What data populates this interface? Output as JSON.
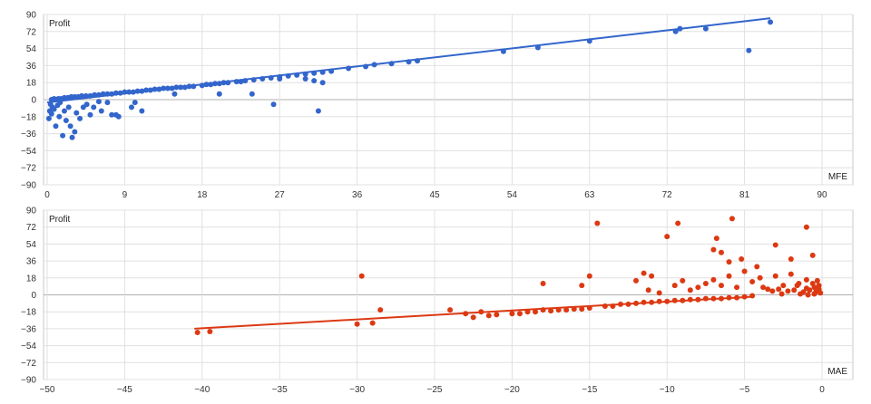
{
  "chart_data": [
    {
      "type": "scatter",
      "title": "",
      "ylabel": "Profit",
      "xlabel": "MFE",
      "xlim": [
        0,
        90
      ],
      "ylim": [
        -90,
        90
      ],
      "xticks": [
        0,
        9,
        18,
        27,
        36,
        45,
        54,
        63,
        72,
        81,
        90
      ],
      "yticks": [
        90,
        72,
        54,
        36,
        18,
        0,
        -18,
        -36,
        -54,
        -72,
        -90
      ],
      "grid": true,
      "color": "#3366cc",
      "series": [
        {
          "points": [
            [
              0.2,
              -20
            ],
            [
              0.3,
              -12
            ],
            [
              0.4,
              -5
            ],
            [
              0.5,
              -15
            ],
            [
              0.6,
              -8
            ],
            [
              0.8,
              -10
            ],
            [
              1.0,
              -28
            ],
            [
              1.2,
              -6
            ],
            [
              1.4,
              -18
            ],
            [
              1.5,
              -3
            ],
            [
              1.8,
              -38
            ],
            [
              2.0,
              -12
            ],
            [
              2.2,
              -22
            ],
            [
              2.5,
              -8
            ],
            [
              2.7,
              -28
            ],
            [
              2.9,
              -40
            ],
            [
              3.2,
              -34
            ],
            [
              3.4,
              -14
            ],
            [
              3.8,
              -20
            ],
            [
              4.2,
              -8
            ],
            [
              4.6,
              -5
            ],
            [
              5.0,
              -16
            ],
            [
              5.4,
              -8
            ],
            [
              6.0,
              -2
            ],
            [
              6.3,
              -12
            ],
            [
              7.0,
              -3
            ],
            [
              7.5,
              -16
            ],
            [
              8.0,
              -16
            ],
            [
              8.3,
              -18
            ],
            [
              9.8,
              -8
            ],
            [
              10.2,
              -3
            ],
            [
              11.0,
              -12
            ],
            [
              0.5,
              0
            ],
            [
              0.8,
              1
            ],
            [
              1.0,
              0
            ],
            [
              1.3,
              1
            ],
            [
              1.6,
              1
            ],
            [
              2.0,
              2
            ],
            [
              2.4,
              2
            ],
            [
              2.8,
              3
            ],
            [
              3.2,
              3
            ],
            [
              3.6,
              3
            ],
            [
              4.0,
              4
            ],
            [
              4.5,
              4
            ],
            [
              5.0,
              4
            ],
            [
              5.5,
              5
            ],
            [
              6.0,
              5
            ],
            [
              6.5,
              6
            ],
            [
              7.0,
              6
            ],
            [
              7.5,
              6
            ],
            [
              8.0,
              7
            ],
            [
              8.5,
              7
            ],
            [
              9.0,
              8
            ],
            [
              9.5,
              8
            ],
            [
              10.0,
              8
            ],
            [
              10.5,
              9
            ],
            [
              11.0,
              9
            ],
            [
              11.5,
              10
            ],
            [
              12.0,
              10
            ],
            [
              12.5,
              11
            ],
            [
              13.0,
              11
            ],
            [
              13.5,
              12
            ],
            [
              14.0,
              12
            ],
            [
              14.5,
              12
            ],
            [
              15.0,
              13
            ],
            [
              15.5,
              13
            ],
            [
              16.0,
              13
            ],
            [
              16.5,
              14
            ],
            [
              17.0,
              14
            ],
            [
              18.0,
              15
            ],
            [
              18.5,
              16
            ],
            [
              19.0,
              16
            ],
            [
              19.5,
              17
            ],
            [
              20.0,
              17
            ],
            [
              20.5,
              18
            ],
            [
              21.0,
              18
            ],
            [
              22.0,
              19
            ],
            [
              22.5,
              19
            ],
            [
              23.0,
              20
            ],
            [
              24.0,
              21
            ],
            [
              25.0,
              22
            ],
            [
              26.0,
              23
            ],
            [
              27.0,
              24
            ],
            [
              28.0,
              25
            ],
            [
              29.0,
              26
            ],
            [
              30.0,
              27
            ],
            [
              31.0,
              28
            ],
            [
              32.0,
              29
            ],
            [
              33.0,
              30
            ],
            [
              35.0,
              33
            ],
            [
              37.0,
              35
            ],
            [
              38.0,
              37
            ],
            [
              40.0,
              38
            ],
            [
              42.0,
              40
            ],
            [
              43.0,
              41
            ],
            [
              14.8,
              6
            ],
            [
              20.0,
              6
            ],
            [
              23.8,
              6
            ],
            [
              26.3,
              -5
            ],
            [
              31.5,
              -12
            ],
            [
              27.0,
              22
            ],
            [
              30.0,
              22
            ],
            [
              31.0,
              20
            ],
            [
              32.0,
              18
            ],
            [
              53.0,
              51
            ],
            [
              57.0,
              55
            ],
            [
              63.0,
              62
            ],
            [
              73.0,
              72
            ],
            [
              73.5,
              75
            ],
            [
              76.5,
              75
            ],
            [
              81.5,
              52
            ],
            [
              84.0,
              82
            ]
          ]
        }
      ],
      "trendline": {
        "x": [
          0,
          84
        ],
        "y": [
          -3,
          86
        ]
      }
    },
    {
      "type": "scatter",
      "title": "",
      "ylabel": "Profit",
      "xlabel": "MAE",
      "xlim": [
        -50,
        0
      ],
      "ylim": [
        -90,
        90
      ],
      "xticks": [
        -50,
        -45,
        -40,
        -35,
        -30,
        -25,
        -20,
        -15,
        -10,
        -5,
        0
      ],
      "yticks": [
        90,
        72,
        54,
        36,
        18,
        0,
        -18,
        -36,
        -54,
        -72,
        -90
      ],
      "grid": true,
      "color": "#dc3912",
      "series": [
        {
          "points": [
            [
              -40.3,
              -40
            ],
            [
              -39.5,
              -39
            ],
            [
              -30.0,
              -31
            ],
            [
              -29.7,
              20
            ],
            [
              -29.0,
              -30
            ],
            [
              -28.5,
              -16
            ],
            [
              -24.0,
              -16
            ],
            [
              -23.0,
              -20
            ],
            [
              -22.5,
              -24
            ],
            [
              -22.0,
              -18
            ],
            [
              -21.5,
              -22
            ],
            [
              -21.0,
              -21
            ],
            [
              -20.0,
              -20
            ],
            [
              -19.5,
              -20
            ],
            [
              -19.0,
              -18
            ],
            [
              -18.5,
              -18
            ],
            [
              -18.0,
              12
            ],
            [
              -18.0,
              -16
            ],
            [
              -17.5,
              -17
            ],
            [
              -17.0,
              -16
            ],
            [
              -16.5,
              -16
            ],
            [
              -16.0,
              -15
            ],
            [
              -15.5,
              -15
            ],
            [
              -15.0,
              -14
            ],
            [
              -15.5,
              10
            ],
            [
              -15.0,
              20
            ],
            [
              -14.5,
              76
            ],
            [
              -14.0,
              -12
            ],
            [
              -13.5,
              -12
            ],
            [
              -13.0,
              -10
            ],
            [
              -12.5,
              -10
            ],
            [
              -12.0,
              15
            ],
            [
              -12.0,
              -9
            ],
            [
              -11.5,
              23
            ],
            [
              -11.0,
              20
            ],
            [
              -11.5,
              -8
            ],
            [
              -11.0,
              -8
            ],
            [
              -10.5,
              -7
            ],
            [
              -10.0,
              -7
            ],
            [
              -10.0,
              62
            ],
            [
              -9.5,
              -6
            ],
            [
              -9.0,
              -6
            ],
            [
              -8.5,
              -5
            ],
            [
              -8.0,
              -5
            ],
            [
              -7.5,
              -4
            ],
            [
              -7.0,
              -4
            ],
            [
              -6.5,
              -4
            ],
            [
              -6.0,
              -3
            ],
            [
              -5.5,
              -3
            ],
            [
              -5.0,
              -2
            ],
            [
              -4.5,
              -1
            ],
            [
              -9.5,
              10
            ],
            [
              -9.0,
              15
            ],
            [
              -8.5,
              5
            ],
            [
              -8.0,
              8
            ],
            [
              -7.5,
              12
            ],
            [
              -7.0,
              16
            ],
            [
              -6.5,
              10
            ],
            [
              -6.0,
              20
            ],
            [
              -5.5,
              8
            ],
            [
              -5.0,
              25
            ],
            [
              -4.5,
              14
            ],
            [
              -4.0,
              18
            ],
            [
              -3.5,
              6
            ],
            [
              -3.0,
              20
            ],
            [
              -2.5,
              10
            ],
            [
              -2.0,
              22
            ],
            [
              -1.5,
              12
            ],
            [
              -1.0,
              16
            ],
            [
              -0.5,
              8
            ],
            [
              -3.8,
              8
            ],
            [
              -3.2,
              4
            ],
            [
              -2.8,
              6
            ],
            [
              -2.2,
              4
            ],
            [
              -1.8,
              5
            ],
            [
              -1.2,
              3
            ],
            [
              -0.8,
              5
            ],
            [
              -0.4,
              3
            ],
            [
              -0.2,
              6
            ],
            [
              -0.1,
              2
            ],
            [
              -1.6,
              10
            ],
            [
              -1.0,
              7
            ],
            [
              -0.6,
              12
            ],
            [
              -0.3,
              15
            ],
            [
              -0.2,
              10
            ],
            [
              -2.6,
              1
            ],
            [
              -1.4,
              1
            ],
            [
              -0.9,
              0
            ],
            [
              -0.5,
              1
            ],
            [
              -0.3,
              4
            ],
            [
              -9.3,
              76
            ],
            [
              -7.0,
              48
            ],
            [
              -6.8,
              60
            ],
            [
              -6.5,
              45
            ],
            [
              -5.8,
              81
            ],
            [
              -5.2,
              38
            ],
            [
              -3.0,
              53
            ],
            [
              -2.0,
              38
            ],
            [
              -1.0,
              72
            ],
            [
              -0.6,
              42
            ],
            [
              -11.2,
              5
            ],
            [
              -10.5,
              2
            ],
            [
              -6.0,
              35
            ],
            [
              -4.2,
              30
            ]
          ]
        }
      ],
      "trendline": {
        "x": [
          -40.5,
          -4.5
        ],
        "y": [
          -36,
          -2
        ]
      }
    }
  ]
}
